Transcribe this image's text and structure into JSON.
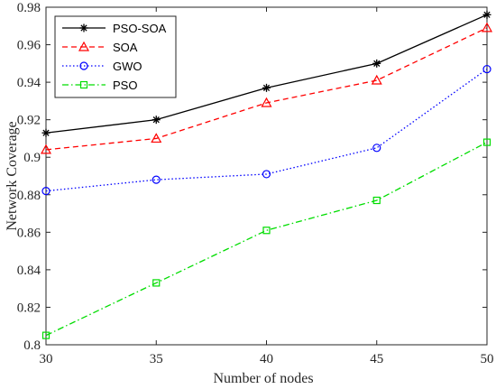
{
  "chart_data": {
    "type": "line",
    "xlabel": "Number of nodes",
    "ylabel": "Network Coverage",
    "x": [
      30,
      35,
      40,
      45,
      50
    ],
    "xlim": [
      30,
      50
    ],
    "ylim": [
      0.8,
      0.98
    ],
    "xticks": [
      "30",
      "35",
      "40",
      "45",
      "50"
    ],
    "yticks": [
      "0.8",
      "0.82",
      "0.84",
      "0.86",
      "0.88",
      "0.9",
      "0.92",
      "0.94",
      "0.96",
      "0.98"
    ],
    "grid": false,
    "legend_position": "top-left",
    "series": [
      {
        "name": "PSO-SOA",
        "values": [
          0.913,
          0.92,
          0.937,
          0.95,
          0.976
        ],
        "color": "#000000",
        "marker": "asterisk",
        "line": "solid"
      },
      {
        "name": "SOA",
        "values": [
          0.904,
          0.91,
          0.929,
          0.941,
          0.969
        ],
        "color": "#ff0000",
        "marker": "triangle",
        "line": "dashed"
      },
      {
        "name": "GWO",
        "values": [
          0.882,
          0.888,
          0.891,
          0.905,
          0.947
        ],
        "color": "#0000ff",
        "marker": "circle",
        "line": "dotted"
      },
      {
        "name": "PSO",
        "values": [
          0.805,
          0.833,
          0.861,
          0.877,
          0.908
        ],
        "color": "#00dd00",
        "marker": "square",
        "line": "dashdot"
      }
    ]
  }
}
